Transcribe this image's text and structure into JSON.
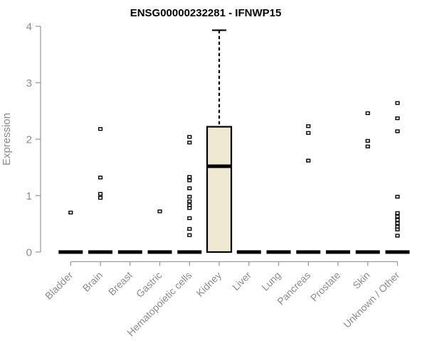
{
  "header": {
    "title": "ENSG00000232281 - IFNWP15"
  },
  "chart_data": {
    "type": "boxplot",
    "title": "ENSG00000232281 - IFNWP15",
    "xlabel": "",
    "ylabel": "Expression",
    "ylim": [
      0,
      4
    ],
    "yticks": [
      0,
      1,
      2,
      3,
      4
    ],
    "grid": false,
    "legend": null,
    "categories": [
      "Bladder",
      "Brain",
      "Breast",
      "Gastric",
      "Hematopoietic cells",
      "Kidney",
      "Liver",
      "Lung",
      "Pancreas",
      "Prostate",
      "Skin",
      "Unknown / Other"
    ],
    "series": [
      {
        "category": "Bladder",
        "whisker_low": 0,
        "q1": 0,
        "median": 0,
        "q3": 0,
        "whisker_high": 0,
        "outliers": [
          0.7
        ]
      },
      {
        "category": "Brain",
        "whisker_low": 0,
        "q1": 0,
        "median": 0,
        "q3": 0,
        "whisker_high": 0,
        "outliers": [
          2.18,
          1.32,
          1.03,
          0.96
        ]
      },
      {
        "category": "Breast",
        "whisker_low": 0,
        "q1": 0,
        "median": 0,
        "q3": 0,
        "whisker_high": 0,
        "outliers": []
      },
      {
        "category": "Gastric",
        "whisker_low": 0,
        "q1": 0,
        "median": 0,
        "q3": 0,
        "whisker_high": 0,
        "outliers": [
          0.72
        ]
      },
      {
        "category": "Hematopoietic cells",
        "whisker_low": 0,
        "q1": 0,
        "median": 0,
        "q3": 0,
        "whisker_high": 0,
        "outliers": [
          2.04,
          1.94,
          1.33,
          1.27,
          1.13,
          0.98,
          0.9,
          0.83,
          0.78,
          0.6,
          0.41,
          0.3
        ]
      },
      {
        "category": "Kidney",
        "whisker_low": 0,
        "q1": 0,
        "median": 1.52,
        "q3": 2.22,
        "whisker_high": 3.93,
        "outliers": []
      },
      {
        "category": "Liver",
        "whisker_low": 0,
        "q1": 0,
        "median": 0,
        "q3": 0,
        "whisker_high": 0,
        "outliers": []
      },
      {
        "category": "Lung",
        "whisker_low": 0,
        "q1": 0,
        "median": 0,
        "q3": 0,
        "whisker_high": 0,
        "outliers": []
      },
      {
        "category": "Pancreas",
        "whisker_low": 0,
        "q1": 0,
        "median": 0,
        "q3": 0,
        "whisker_high": 0,
        "outliers": [
          2.23,
          2.11,
          1.62
        ]
      },
      {
        "category": "Prostate",
        "whisker_low": 0,
        "q1": 0,
        "median": 0,
        "q3": 0,
        "whisker_high": 0,
        "outliers": []
      },
      {
        "category": "Skin",
        "whisker_low": 0,
        "q1": 0,
        "median": 0,
        "q3": 0,
        "whisker_high": 0,
        "outliers": [
          2.46,
          1.97,
          1.87
        ]
      },
      {
        "category": "Unknown / Other",
        "whisker_low": 0,
        "q1": 0,
        "median": 0,
        "q3": 0,
        "whisker_high": 0,
        "outliers": [
          2.64,
          2.37,
          2.14,
          0.98,
          0.69,
          0.63,
          0.57,
          0.51,
          0.45,
          0.4,
          0.29
        ]
      }
    ],
    "colors": {
      "box_fill": "#EDE8CF",
      "box_border": "#000000",
      "median": "#000000",
      "zero_bar": "#000000",
      "outlier_fill": "#FFFFFF",
      "outlier_border": "#000000",
      "axis_line": "#9B9B9B",
      "tick_label": "#8C8C8C",
      "title": "#000000",
      "background": "#FFFFFF"
    }
  }
}
